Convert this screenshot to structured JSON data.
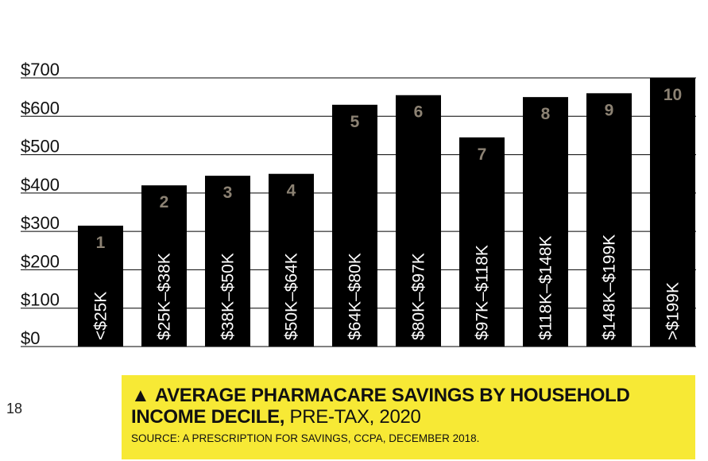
{
  "page": {
    "number": "18"
  },
  "caption": {
    "marker": "▲",
    "title_bold": "AVERAGE PHARMACARE SAVINGS BY HOUSEHOLD INCOME DECILE,",
    "title_light": "PRE-TAX, 2020",
    "source": "SOURCE: A PRESCRIPTION FOR SAVINGS, CCPA, DECEMBER 2018.",
    "background": "#f7e935"
  },
  "chart_data": {
    "type": "bar",
    "title": "AVERAGE PHARMACARE SAVINGS BY HOUSEHOLD INCOME DECILE, PRE-TAX, 2020",
    "categories": [
      "<$25K",
      "$25K–$38K",
      "$38K–$50K",
      "$50K–$64K",
      "$64K–$80K",
      "$80K–$97K",
      "$97K–$118K",
      "$118K–$148K",
      "$148K–$199K",
      ">$199K"
    ],
    "decile_labels": [
      "1",
      "2",
      "3",
      "4",
      "5",
      "6",
      "7",
      "8",
      "9",
      "10"
    ],
    "values": [
      315,
      420,
      445,
      450,
      630,
      655,
      545,
      650,
      660,
      700
    ],
    "ylim": [
      0,
      700
    ],
    "yticks": [
      0,
      100,
      200,
      300,
      400,
      500,
      600,
      700
    ],
    "ytick_labels": [
      "$0",
      "$100",
      "$200",
      "$300",
      "$400",
      "$500",
      "$600",
      "$700"
    ],
    "grid": true,
    "colors": {
      "bar": "#000000",
      "decile_label": "#8c8273",
      "category_label": "#ffffff",
      "grid": "#000000"
    }
  }
}
